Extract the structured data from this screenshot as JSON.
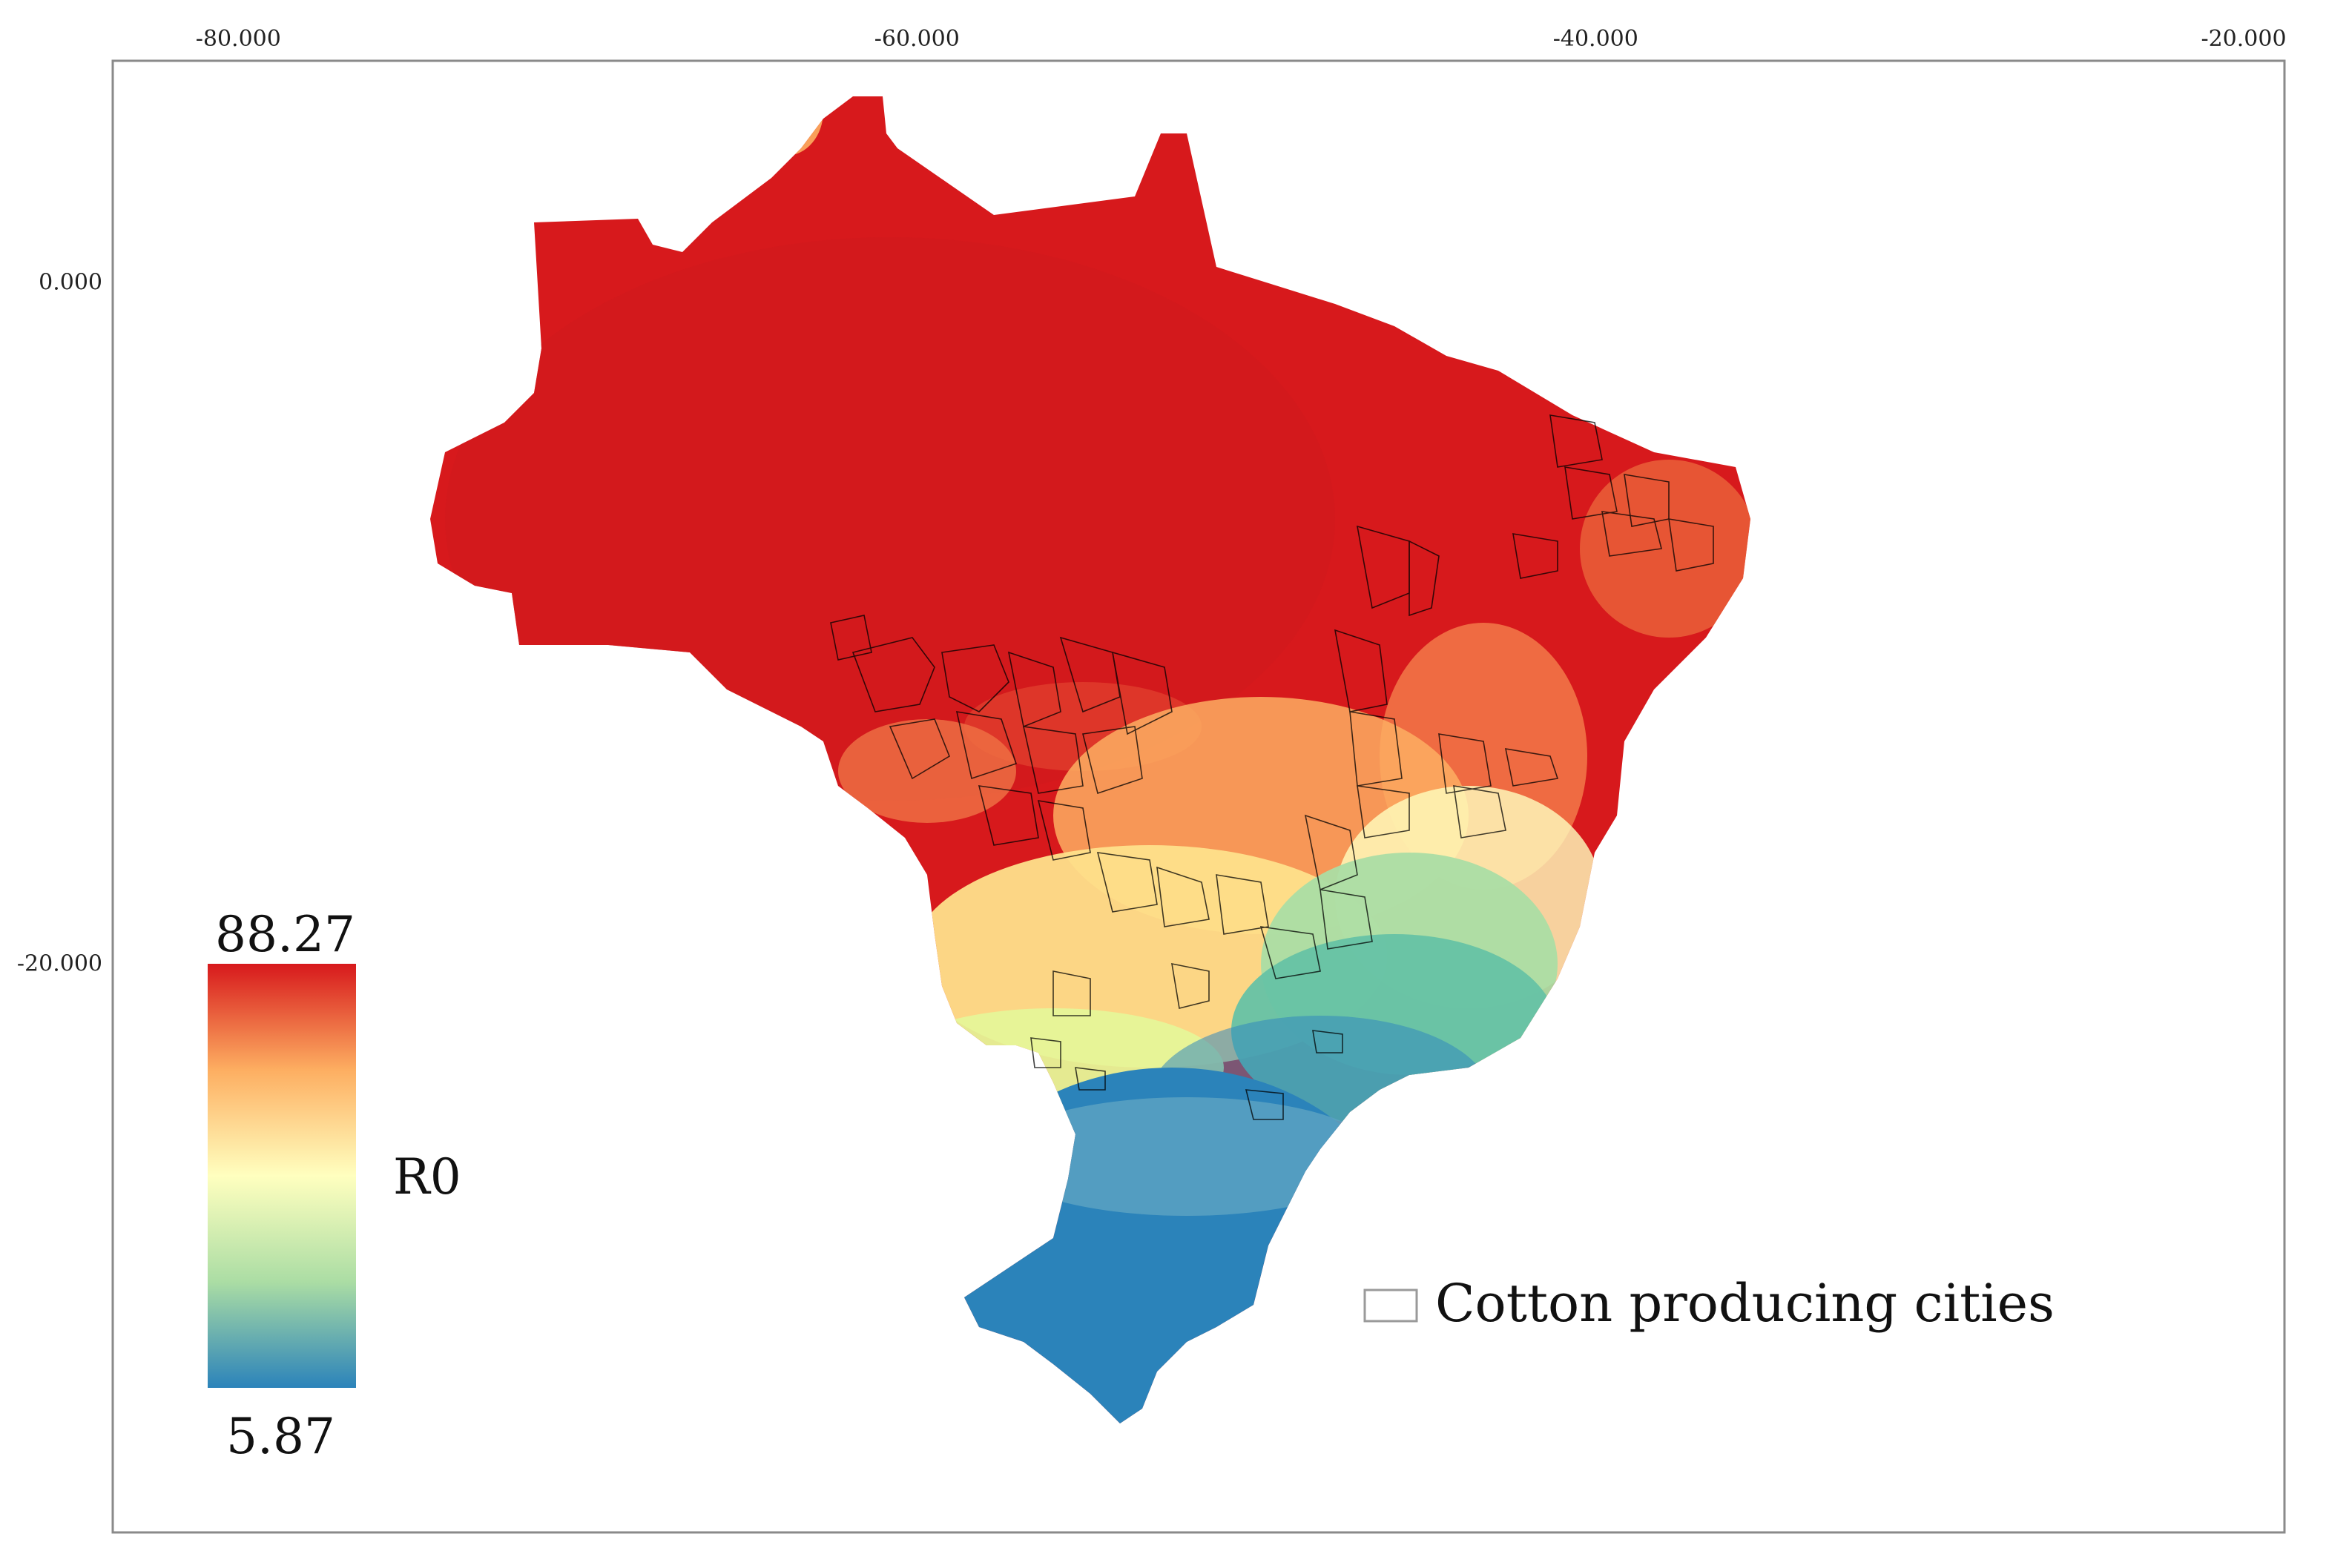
{
  "map": {
    "axes": {
      "longitude_ticks": [
        {
          "value": -80,
          "label": "-80.000"
        },
        {
          "value": -60,
          "label": "-60.000"
        },
        {
          "value": -40,
          "label": "-40.000"
        },
        {
          "value": -20,
          "label": "-20.000"
        }
      ],
      "latitude_ticks": [
        {
          "value": 0,
          "label": "0.000"
        },
        {
          "value": -20,
          "label": "-20.000"
        }
      ],
      "lon_range": [
        -83.7,
        -19.7
      ],
      "lat_range": [
        6.5,
        -36.7
      ]
    },
    "legend": {
      "title": "R0",
      "max_label": "88.27",
      "min_label": "5.87",
      "max_value": 88.27,
      "min_value": 5.87,
      "placement": "bottom-left",
      "color_ramp": [
        "#2b83ba",
        "#abdda4",
        "#ffffbf",
        "#fdae61",
        "#d7191c"
      ]
    },
    "overlay_legend": {
      "label": "Cotton producing cities",
      "placement": "bottom-right"
    },
    "colors": {
      "frame": "#888888",
      "city_outline": "#000000"
    }
  }
}
